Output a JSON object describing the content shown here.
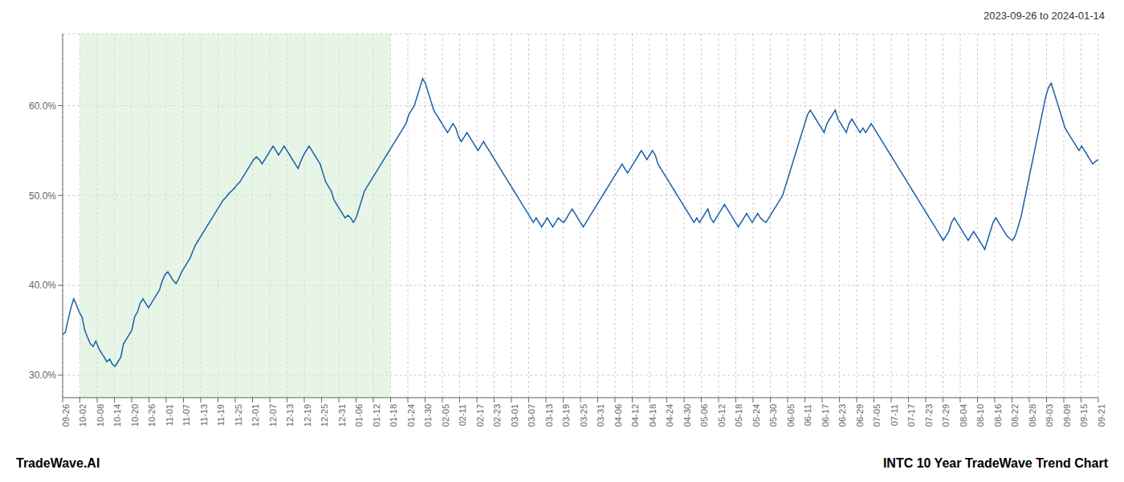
{
  "chart_data": {
    "type": "line",
    "subtitle": "2023-09-26 to 2024-01-14",
    "annotations": [
      "TradeWave.AI",
      "INTC 10 Year TradeWave Trend Chart"
    ],
    "grid": true,
    "xlim": [
      0,
      60
    ],
    "xticks": [
      {
        "value": 0,
        "label": "09-26"
      },
      {
        "value": 1,
        "label": "10-02"
      },
      {
        "value": 2,
        "label": "10-08"
      },
      {
        "value": 3,
        "label": "10-14"
      },
      {
        "value": 4,
        "label": "10-20"
      },
      {
        "value": 5,
        "label": "10-26"
      },
      {
        "value": 6,
        "label": "11-01"
      },
      {
        "value": 7,
        "label": "11-07"
      },
      {
        "value": 8,
        "label": "11-13"
      },
      {
        "value": 9,
        "label": "11-19"
      },
      {
        "value": 10,
        "label": "11-25"
      },
      {
        "value": 11,
        "label": "12-01"
      },
      {
        "value": 12,
        "label": "12-07"
      },
      {
        "value": 13,
        "label": "12-13"
      },
      {
        "value": 14,
        "label": "12-19"
      },
      {
        "value": 15,
        "label": "12-25"
      },
      {
        "value": 16,
        "label": "12-31"
      },
      {
        "value": 17,
        "label": "01-06"
      },
      {
        "value": 18,
        "label": "01-12"
      },
      {
        "value": 19,
        "label": "01-18"
      },
      {
        "value": 20,
        "label": "01-24"
      },
      {
        "value": 21,
        "label": "01-30"
      },
      {
        "value": 22,
        "label": "02-05"
      },
      {
        "value": 23,
        "label": "02-11"
      },
      {
        "value": 24,
        "label": "02-17"
      },
      {
        "value": 25,
        "label": "02-23"
      },
      {
        "value": 26,
        "label": "03-01"
      },
      {
        "value": 27,
        "label": "03-07"
      },
      {
        "value": 28,
        "label": "03-13"
      },
      {
        "value": 29,
        "label": "03-19"
      },
      {
        "value": 30,
        "label": "03-25"
      },
      {
        "value": 31,
        "label": "03-31"
      },
      {
        "value": 32,
        "label": "04-06"
      },
      {
        "value": 33,
        "label": "04-12"
      },
      {
        "value": 34,
        "label": "04-18"
      },
      {
        "value": 35,
        "label": "04-24"
      },
      {
        "value": 36,
        "label": "04-30"
      },
      {
        "value": 37,
        "label": "05-06"
      },
      {
        "value": 38,
        "label": "05-12"
      },
      {
        "value": 39,
        "label": "05-18"
      },
      {
        "value": 40,
        "label": "05-24"
      },
      {
        "value": 41,
        "label": "05-30"
      },
      {
        "value": 42,
        "label": "06-05"
      },
      {
        "value": 43,
        "label": "06-11"
      },
      {
        "value": 44,
        "label": "06-17"
      },
      {
        "value": 45,
        "label": "06-23"
      },
      {
        "value": 46,
        "label": "06-29"
      },
      {
        "value": 47,
        "label": "07-05"
      },
      {
        "value": 48,
        "label": "07-11"
      },
      {
        "value": 49,
        "label": "07-17"
      },
      {
        "value": 50,
        "label": "07-23"
      },
      {
        "value": 51,
        "label": "07-29"
      },
      {
        "value": 52,
        "label": "08-04"
      },
      {
        "value": 53,
        "label": "08-10"
      },
      {
        "value": 54,
        "label": "08-16"
      },
      {
        "value": 55,
        "label": "08-22"
      },
      {
        "value": 56,
        "label": "08-28"
      },
      {
        "value": 57,
        "label": "09-03"
      },
      {
        "value": 58,
        "label": "09-09"
      },
      {
        "value": 59,
        "label": "09-15"
      },
      {
        "value": 60,
        "label": "09-21"
      }
    ],
    "ylim": [
      27.5,
      68.0
    ],
    "yticks": [
      {
        "value": 30.0,
        "label": "30.0%"
      },
      {
        "value": 40.0,
        "label": "40.0%"
      },
      {
        "value": 50.0,
        "label": "50.0%"
      },
      {
        "value": 60.0,
        "label": "60.0%"
      }
    ],
    "spans": [
      {
        "from": 1,
        "to": 19,
        "color": "#d4ecd4"
      }
    ],
    "color": "#1a5fa8",
    "values": [
      34.5,
      34.8,
      36.2,
      37.5,
      38.5,
      37.8,
      37.0,
      36.5,
      35.0,
      34.2,
      33.5,
      33.2,
      33.8,
      33.0,
      32.5,
      32.0,
      31.5,
      31.8,
      31.2,
      31.0,
      31.5,
      32.0,
      33.5,
      34.0,
      34.5,
      35.0,
      36.5,
      37.0,
      38.0,
      38.5,
      38.0,
      37.5,
      38.0,
      38.5,
      39.0,
      39.5,
      40.5,
      41.2,
      41.5,
      41.0,
      40.5,
      40.2,
      40.8,
      41.5,
      42.0,
      42.5,
      43.0,
      43.8,
      44.5,
      45.0,
      45.5,
      46.0,
      46.5,
      47.0,
      47.5,
      48.0,
      48.5,
      49.0,
      49.5,
      49.8,
      50.2,
      50.5,
      50.8,
      51.2,
      51.5,
      52.0,
      52.5,
      53.0,
      53.5,
      54.0,
      54.3,
      54.0,
      53.5,
      54.0,
      54.5,
      55.0,
      55.5,
      55.0,
      54.5,
      55.0,
      55.5,
      55.0,
      54.5,
      54.0,
      53.5,
      53.0,
      53.8,
      54.5,
      55.0,
      55.5,
      55.0,
      54.5,
      54.0,
      53.5,
      52.5,
      51.5,
      51.0,
      50.5,
      49.5,
      49.0,
      48.5,
      48.0,
      47.5,
      47.8,
      47.5,
      47.0,
      47.5,
      48.5,
      49.5,
      50.5,
      51.0,
      51.5,
      52.0,
      52.5,
      53.0,
      53.5,
      54.0,
      54.5,
      55.0,
      55.5,
      56.0,
      56.5,
      57.0,
      57.5,
      58.0,
      59.0,
      59.5,
      60.0,
      61.0,
      62.0,
      63.0,
      62.5,
      61.5,
      60.5,
      59.5,
      59.0,
      58.5,
      58.0,
      57.5,
      57.0,
      57.5,
      58.0,
      57.5,
      56.5,
      56.0,
      56.5,
      57.0,
      56.5,
      56.0,
      55.5,
      55.0,
      55.5,
      56.0,
      55.5,
      55.0,
      54.5,
      54.0,
      53.5,
      53.0,
      52.5,
      52.0,
      51.5,
      51.0,
      50.5,
      50.0,
      49.5,
      49.0,
      48.5,
      48.0,
      47.5,
      47.0,
      47.5,
      47.0,
      46.5,
      47.0,
      47.5,
      47.0,
      46.5,
      47.0,
      47.5,
      47.2,
      47.0,
      47.5,
      48.0,
      48.5,
      48.0,
      47.5,
      47.0,
      46.5,
      47.0,
      47.5,
      48.0,
      48.5,
      49.0,
      49.5,
      50.0,
      50.5,
      51.0,
      51.5,
      52.0,
      52.5,
      53.0,
      53.5,
      53.0,
      52.5,
      53.0,
      53.5,
      54.0,
      54.5,
      55.0,
      54.5,
      54.0,
      54.5,
      55.0,
      54.5,
      53.5,
      53.0,
      52.5,
      52.0,
      51.5,
      51.0,
      50.5,
      50.0,
      49.5,
      49.0,
      48.5,
      48.0,
      47.5,
      47.0,
      47.5,
      47.0,
      47.5,
      48.0,
      48.5,
      47.5,
      47.0,
      47.5,
      48.0,
      48.5,
      49.0,
      48.5,
      48.0,
      47.5,
      47.0,
      46.5,
      47.0,
      47.5,
      48.0,
      47.5,
      47.0,
      47.5,
      48.0,
      47.5,
      47.2,
      47.0,
      47.5,
      48.0,
      48.5,
      49.0,
      49.5,
      50.0,
      51.0,
      52.0,
      53.0,
      54.0,
      55.0,
      56.0,
      57.0,
      58.0,
      59.0,
      59.5,
      59.0,
      58.5,
      58.0,
      57.5,
      57.0,
      58.0,
      58.5,
      59.0,
      59.5,
      58.5,
      58.0,
      57.5,
      57.0,
      58.0,
      58.5,
      58.0,
      57.5,
      57.0,
      57.5,
      57.0,
      57.5,
      58.0,
      57.5,
      57.0,
      56.5,
      56.0,
      55.5,
      55.0,
      54.5,
      54.0,
      53.5,
      53.0,
      52.5,
      52.0,
      51.5,
      51.0,
      50.5,
      50.0,
      49.5,
      49.0,
      48.5,
      48.0,
      47.5,
      47.0,
      46.5,
      46.0,
      45.5,
      45.0,
      45.5,
      46.0,
      47.0,
      47.5,
      47.0,
      46.5,
      46.0,
      45.5,
      45.0,
      45.5,
      46.0,
      45.5,
      45.0,
      44.5,
      44.0,
      45.0,
      46.0,
      47.0,
      47.5,
      47.0,
      46.5,
      46.0,
      45.5,
      45.2,
      45.0,
      45.5,
      46.5,
      47.5,
      49.0,
      50.5,
      52.0,
      53.5,
      55.0,
      56.5,
      58.0,
      59.5,
      61.0,
      62.0,
      62.5,
      61.5,
      60.5,
      59.5,
      58.5,
      57.5,
      57.0,
      56.5,
      56.0,
      55.5,
      55.0,
      55.5,
      55.0,
      54.5,
      54.0,
      53.5,
      53.8,
      54.0
    ]
  }
}
